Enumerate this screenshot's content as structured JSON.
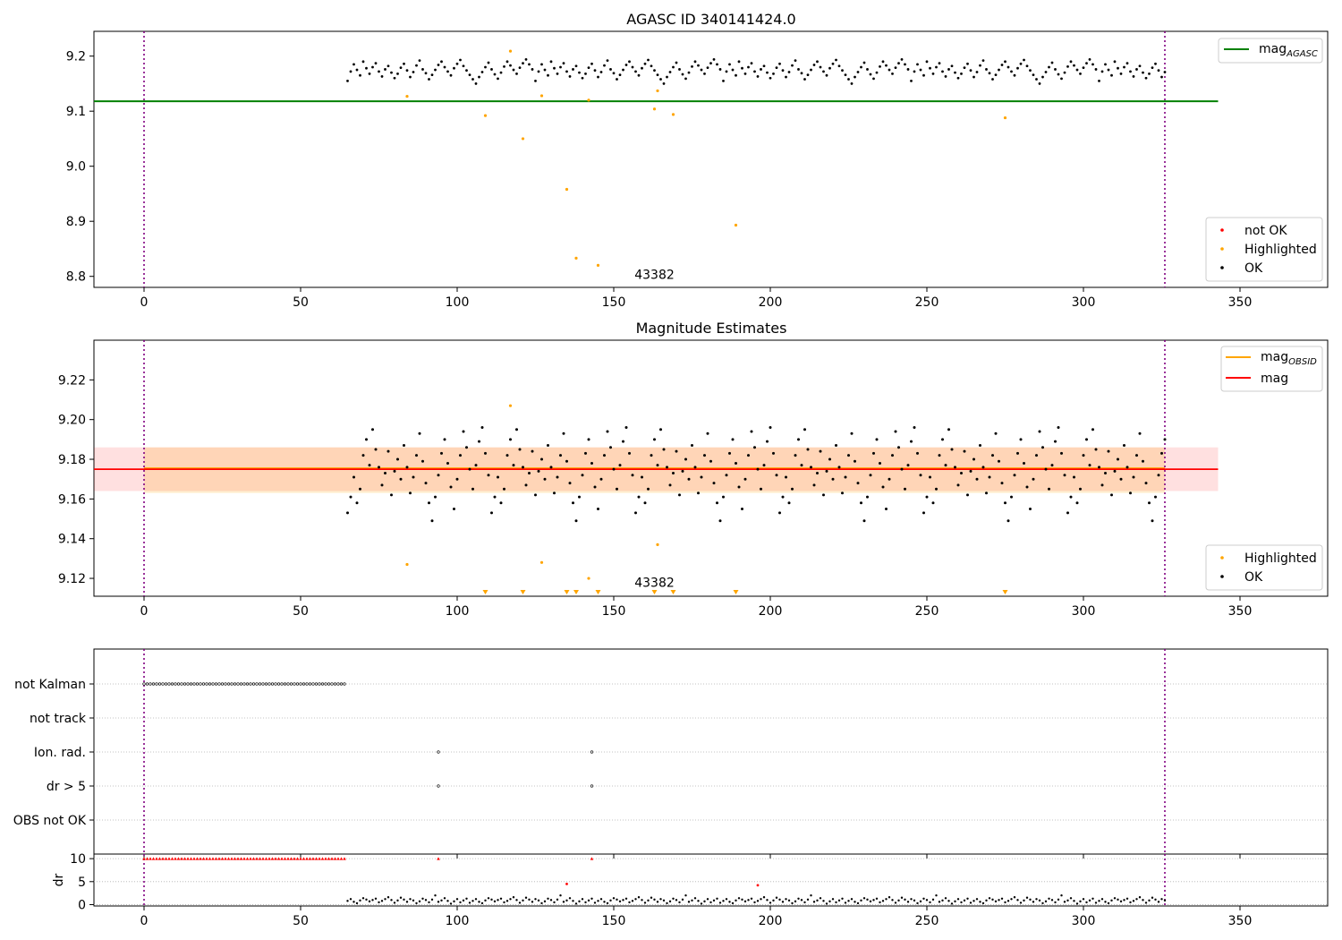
{
  "colors": {
    "ok": "#000000",
    "highlighted": "#ffa500",
    "not_ok": "#ff0000",
    "agasc": "#008000",
    "obsid_mag": "#ffa500",
    "mag": "#ff0000",
    "obs_boundary": "#800080",
    "grid": "#b0b0b0"
  },
  "chart_data": [
    {
      "type": "scatter",
      "title": "AGASC ID 340141424.0",
      "xlim": [
        -16,
        378
      ],
      "ylim": [
        8.78,
        9.245
      ],
      "xticks": [
        0,
        50,
        100,
        150,
        200,
        250,
        300,
        350
      ],
      "yticks": [
        8.8,
        8.9,
        9.0,
        9.1,
        9.2
      ],
      "hline": {
        "name": "mag_AGASC",
        "y": 9.118,
        "x": [
          -16,
          343
        ]
      },
      "obs_boundaries": [
        0,
        326
      ],
      "obs_label": {
        "text": "43382",
        "x": 163,
        "y": 8.8
      },
      "legend_lines": [
        {
          "label": "mag",
          "sub": "AGASC"
        }
      ],
      "legend_points": [
        "not OK",
        "Highlighted",
        "OK"
      ],
      "ok_range": [
        65,
        326
      ],
      "ok_y": [
        9.155,
        9.172,
        9.185,
        9.175,
        9.165,
        9.19,
        9.178,
        9.168,
        9.18,
        9.187,
        9.172,
        9.163,
        9.176,
        9.182,
        9.17,
        9.16,
        9.168,
        9.179,
        9.186,
        9.174,
        9.162,
        9.171,
        9.183,
        9.192,
        9.176,
        9.169,
        9.158,
        9.166,
        9.175,
        9.184,
        9.19,
        9.18,
        9.172,
        9.165,
        9.178,
        9.186,
        9.193,
        9.182,
        9.174,
        9.166,
        9.158,
        9.15,
        9.162,
        9.171,
        9.18,
        9.188,
        9.176,
        9.167,
        9.159,
        9.17,
        9.181,
        9.19,
        9.183,
        9.175,
        9.168,
        9.179,
        9.187,
        9.194,
        9.185,
        9.176
      ],
      "highlighted": [
        [
          84,
          9.127
        ],
        [
          109,
          9.092
        ],
        [
          117,
          9.209
        ],
        [
          121,
          9.05
        ],
        [
          127,
          9.128
        ],
        [
          135,
          8.958
        ],
        [
          138,
          8.833
        ],
        [
          142,
          9.12
        ],
        [
          145,
          8.82
        ],
        [
          163,
          9.104
        ],
        [
          164,
          9.137
        ],
        [
          169,
          9.094
        ],
        [
          189,
          8.893
        ],
        [
          275,
          9.088
        ]
      ]
    },
    {
      "type": "scatter",
      "title": "Magnitude Estimates",
      "xlim": [
        -16,
        378
      ],
      "ylim": [
        9.111,
        9.24
      ],
      "xticks": [
        0,
        50,
        100,
        150,
        200,
        250,
        300,
        350
      ],
      "yticks": [
        9.12,
        9.14,
        9.16,
        9.18,
        9.2,
        9.22
      ],
      "obs_boundaries": [
        0,
        326
      ],
      "obs_label": {
        "text": "43382",
        "x": 163,
        "y": 9.117
      },
      "mag_band": {
        "center": 9.175,
        "low": 9.164,
        "high": 9.186,
        "x": [
          -16,
          343
        ]
      },
      "obsid_band": {
        "center": 9.175,
        "low": 9.163,
        "high": 9.186,
        "x": [
          0,
          326
        ]
      },
      "legend_lines": [
        {
          "label": "mag",
          "sub": "OBSID"
        },
        {
          "label": "mag",
          "sub": ""
        }
      ],
      "legend_points": [
        "Highlighted",
        "OK"
      ],
      "ok_range": [
        65,
        326
      ],
      "ok_y": [
        9.153,
        9.161,
        9.171,
        9.158,
        9.165,
        9.182,
        9.19,
        9.177,
        9.195,
        9.185,
        9.176,
        9.167,
        9.173,
        9.184,
        9.162,
        9.174,
        9.18,
        9.17,
        9.187,
        9.176,
        9.163,
        9.171,
        9.182,
        9.193,
        9.179,
        9.168,
        9.158,
        9.149,
        9.161,
        9.172,
        9.183,
        9.19,
        9.178,
        9.166,
        9.155,
        9.17,
        9.182,
        9.194,
        9.186,
        9.175,
        9.165,
        9.177,
        9.189,
        9.196,
        9.183,
        9.172
      ],
      "highlighted": [
        [
          84,
          9.127
        ],
        [
          117,
          9.207
        ],
        [
          127,
          9.128
        ],
        [
          142,
          9.12
        ],
        [
          164,
          9.137
        ]
      ],
      "below_range_x": [
        109,
        121,
        135,
        138,
        145,
        163,
        169,
        189,
        275
      ]
    },
    {
      "type": "scatter",
      "title": "",
      "xlim": [
        -16,
        378
      ],
      "xticks": [
        0,
        50,
        100,
        150,
        200,
        250,
        300,
        350
      ],
      "categories": [
        "not Kalman",
        "not track",
        "Ion. rad.",
        "dr > 5",
        "OBS not OK"
      ],
      "obs_boundaries": [
        0,
        326
      ],
      "flags": {
        "not Kalman": [
          0,
          64
        ],
        "Ion. rad.": [
          94,
          143
        ],
        "dr > 5": [
          94,
          143
        ]
      }
    },
    {
      "type": "scatter",
      "title": "",
      "ylabel": "dr",
      "xlim": [
        -16,
        378
      ],
      "ylim": [
        -0.3,
        11
      ],
      "yticks": [
        0,
        5,
        10
      ],
      "xticks": [
        0,
        50,
        100,
        150,
        200,
        250,
        300,
        350
      ],
      "obs_boundaries": [
        0,
        326
      ],
      "not_ok_points": [
        [
          135,
          4.5
        ],
        [
          196,
          4.2
        ]
      ],
      "not_ok_saturated": {
        "y": 10,
        "x_range": [
          0,
          64
        ],
        "extra_x": [
          94,
          143
        ]
      },
      "ok_range": [
        65,
        326
      ],
      "ok_y": [
        0.8,
        1.2,
        0.6,
        0.3,
        0.9,
        1.4,
        1.1,
        0.7,
        1.0,
        1.3,
        0.5,
        0.8,
        1.2,
        1.6,
        1.0,
        0.4,
        0.9,
        1.5,
        1.1,
        0.6,
        1.2,
        0.9,
        0.3,
        0.7,
        1.3,
        1.0,
        0.5,
        1.1,
        2.0,
        0.6,
        0.9,
        1.4,
        0.8,
        0.2,
        0.7,
        1.2,
        0.5,
        0.9,
        1.3,
        0.4
      ]
    }
  ]
}
